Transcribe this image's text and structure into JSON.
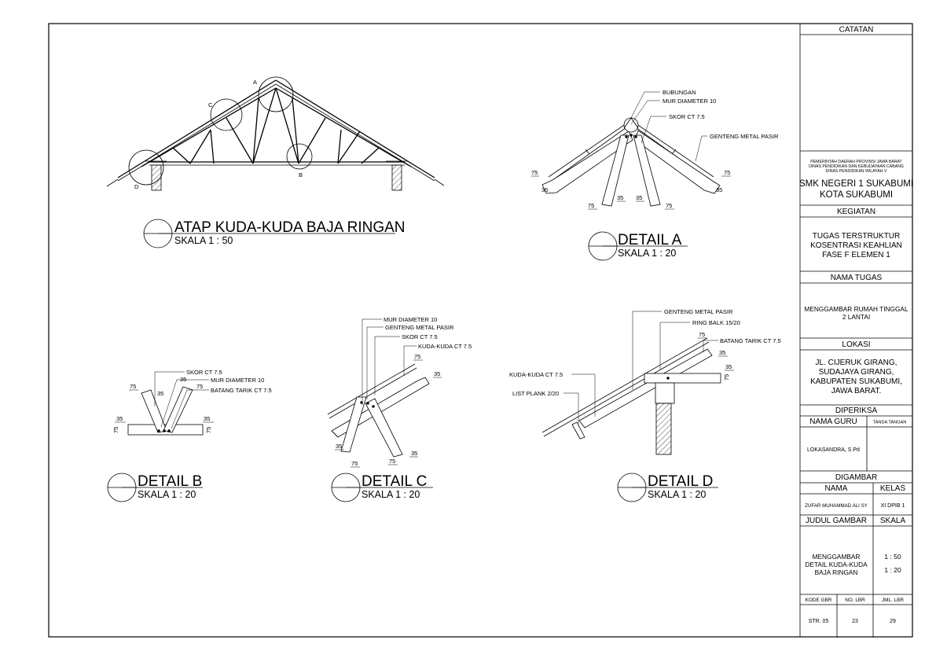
{
  "titleblock": {
    "catatan": "CATATAN",
    "gov_line1": "PEMERINTAH DAERAH PROVINSI JAWA BARAT",
    "gov_line2": "DINAS PENDIDIKAN DAN KEBUDAYAAN CABANG",
    "gov_line3": "DINAS PENDIDIKAN WILAYAH V",
    "school_line1": "SMK NEGERI 1 SUKABUMI",
    "school_line2": "KOTA SUKABUMI",
    "kegiatan_label": "KEGIATAN",
    "kegiatan_line1": "TUGAS TERSTRUKTUR",
    "kegiatan_line2": "KOSENTRASI KEAHLIAN",
    "kegiatan_line3": "FASE F ELEMEN 1",
    "nama_tugas_label": "NAMA TUGAS",
    "nama_tugas_line1": "MENGGAMBAR RUMAH TINGGAL",
    "nama_tugas_line2": "2 LANTAI",
    "lokasi_label": "LOKASI",
    "lokasi_line1": "JL. CIJERUK GIRANG,",
    "lokasi_line2": "SUDAJAYA GIRANG,",
    "lokasi_line3": "KABUPATEN SUKABUMI,",
    "lokasi_line4": "JAWA BARAT.",
    "diperiksa_label": "DIPERIKSA",
    "nama_guru_label": "NAMA GURU",
    "tanda_tangan_label": "TANDA TANGAN",
    "guru_name": "LOKASANDRA, S.Pd",
    "digambar_label": "DIGAMBAR",
    "nama_label": "NAMA",
    "kelas_label": "KELAS",
    "student_name": "ZUFAR MUHAMMAD ALI SY",
    "kelas_value": "XI DPIB 1",
    "judul_label": "JUDUL GAMBAR",
    "skala_label": "SKALA",
    "judul_line1": "MENGGAMBAR",
    "judul_line2": "DETAIL KUDA-KUDA",
    "judul_line3": "BAJA RINGAN",
    "skala_1": "1 : 50",
    "skala_2": "1 : 20",
    "kode_label": "KODE GBR",
    "nolbr_label": "NO. LBR",
    "jmllbr_label": "JML. LBR",
    "kode_value": "STR. 05",
    "nolbr_value": "23",
    "jmllbr_value": "29"
  },
  "main_view": {
    "title": "ATAP KUDA-KUDA BAJA RINGAN",
    "scale": "SKALA 1 : 50",
    "label_a": "A",
    "label_b": "B",
    "label_c": "C",
    "label_d": "D"
  },
  "detail_a": {
    "title": "DETAIL A",
    "scale": "SKALA 1 : 20",
    "ann_bubungan": "BUBUNGAN",
    "ann_mur": "MUR DIAMETER 10",
    "ann_skor": "SKOR CT 7.5",
    "ann_genteng": "GENTENG METAL PASIR",
    "dim_75_left": "75",
    "dim_35_left": "35",
    "dim_75_right": "75",
    "dim_35_right": "35",
    "dim_75_bl": "75",
    "dim_35_bl": "35",
    "dim_35_br": "35",
    "dim_75_br": "75"
  },
  "detail_b": {
    "title": "DETAIL B",
    "scale": "SKALA 1 : 20",
    "ann_skor": "SKOR CT 7.5",
    "ann_mur": "MUR DIAMETER 10",
    "ann_batang": "BATANG TARIK CT 7.5",
    "dim_75_top": "75",
    "dim_35_top": "35",
    "dim_35_top2": "35",
    "dim_75_top2": "75",
    "dim_35_left": "35",
    "dim_75_left": "75",
    "dim_35_right": "35",
    "dim_75_right": "75"
  },
  "detail_c": {
    "title": "DETAIL C",
    "scale": "SKALA 1 : 20",
    "ann_mur": "MUR DIAMETER 10",
    "ann_genteng": "GENTENG METAL PASIR",
    "ann_skor": "SKOR CT 7.5",
    "ann_kuda": "KUDA-KUDA CT 7.5",
    "dim_75_top": "75",
    "dim_35_top": "35",
    "dim_35_bl": "35",
    "dim_75_bl": "75",
    "dim_75_br": "75",
    "dim_35_br": "35"
  },
  "detail_d": {
    "title": "DETAIL D",
    "scale": "SKALA 1 : 20",
    "ann_genteng": "GENTENG METAL PASIR",
    "ann_ring": "RING BALK 15/20",
    "ann_batang": "BATANG TARIK CT 7.5",
    "ann_kuda": "KUDA-KUDA CT 7.5",
    "ann_list": "LIST PLANK 2/20",
    "dim_75_top": "75",
    "dim_35_top": "35",
    "dim_35_right": "35",
    "dim_75_right": "75"
  }
}
